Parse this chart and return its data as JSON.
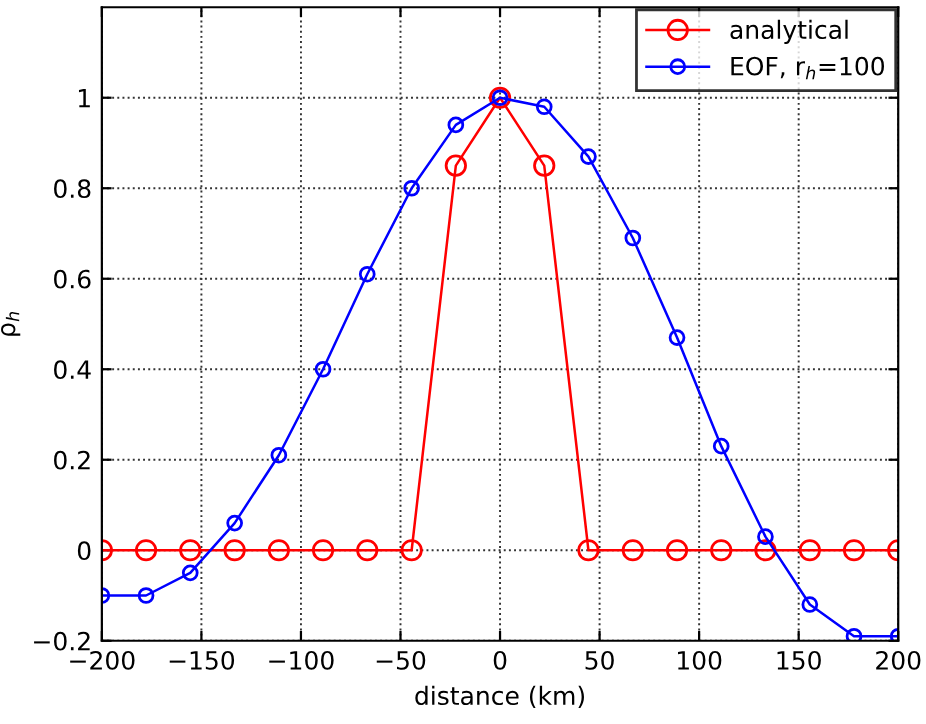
{
  "chart_data": {
    "type": "line",
    "xlabel": "distance (km)",
    "ylabel": "ρ$_{h}$",
    "x": [
      -200,
      -177.8,
      -155.6,
      -133.3,
      -111.1,
      -88.9,
      -66.7,
      -44.4,
      -22.2,
      0,
      22.2,
      44.4,
      66.7,
      88.9,
      111.1,
      133.3,
      155.6,
      177.8,
      200
    ],
    "series": [
      {
        "name": "analytical",
        "color": "#ff0000",
        "values": [
          0,
          0,
          0,
          0,
          0,
          0,
          0,
          0,
          0.85,
          1,
          0.85,
          0,
          0,
          0,
          0,
          0,
          0,
          0,
          0
        ]
      },
      {
        "name": "EOF, r$_{h}$=100",
        "color": "#0000ff",
        "values": [
          -0.1,
          -0.1,
          -0.05,
          0.06,
          0.21,
          0.4,
          0.61,
          0.8,
          0.94,
          1,
          0.98,
          0.87,
          0.69,
          0.47,
          0.23,
          0.03,
          -0.12,
          -0.19,
          -0.19
        ]
      }
    ],
    "xlim": [
      -200,
      200
    ],
    "xticks": [
      -200,
      -150,
      -100,
      -50,
      0,
      50,
      100,
      150,
      200
    ],
    "ylim": [
      -0.2,
      1.2
    ],
    "yticks": [
      -0.2,
      0,
      0.2,
      0.4,
      0.6,
      0.8,
      1
    ],
    "grid": true,
    "legend": "top right",
    "marker": "circle",
    "line_style": "solid"
  }
}
